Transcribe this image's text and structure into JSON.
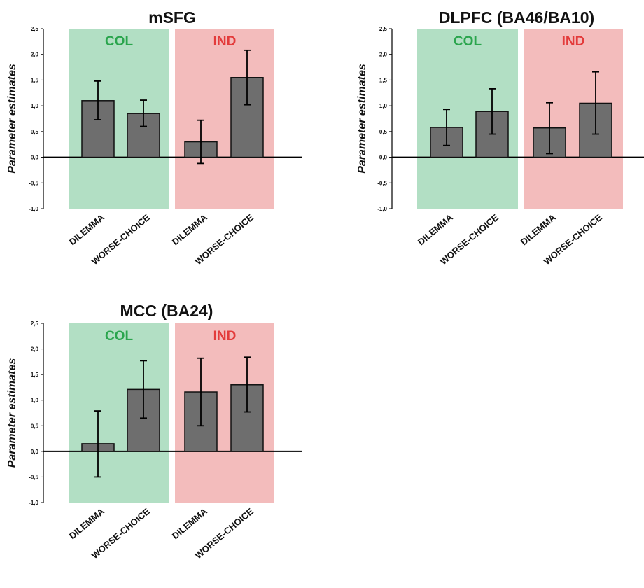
{
  "colors": {
    "col_band": "#b2dfc4",
    "ind_band": "#f3bcbc",
    "col_text": "#2aa54d",
    "ind_text": "#e33b3b",
    "bar_fill": "#6e6e6e",
    "bar_stroke": "#111111",
    "axis": "#000000"
  },
  "chart_data": [
    {
      "type": "bar",
      "title": "mSFG",
      "ylabel": "Parameter estimates",
      "xlabel": "",
      "ylim": [
        -1.0,
        2.5
      ],
      "yticks": [
        "-1,0",
        "-0,5",
        "0,0",
        "0,5",
        "1,0",
        "1,5",
        "2,0",
        "2,5"
      ],
      "ytick_values": [
        -1.0,
        -0.5,
        0.0,
        0.5,
        1.0,
        1.5,
        2.0,
        2.5
      ],
      "categories": [
        "DILEMMA",
        "WORSE-CHOICE",
        "DILEMMA",
        "WORSE-CHOICE"
      ],
      "groups": [
        {
          "label": "COL",
          "categories": [
            0,
            1
          ]
        },
        {
          "label": "IND",
          "categories": [
            2,
            3
          ]
        }
      ],
      "values": [
        1.1,
        0.85,
        0.3,
        1.55
      ],
      "error_low": [
        0.73,
        0.6,
        -0.12,
        1.02
      ],
      "error_high": [
        1.48,
        1.11,
        0.72,
        2.08
      ],
      "grid": false,
      "legend": "none"
    },
    {
      "type": "bar",
      "title": "DLPFC (BA46/BA10)",
      "ylabel": "Parameter estimates",
      "xlabel": "",
      "ylim": [
        -1.0,
        2.5
      ],
      "yticks": [
        "-1,0",
        "-0,5",
        "0,0",
        "0,5",
        "1,0",
        "1,5",
        "2,0",
        "2,5"
      ],
      "ytick_values": [
        -1.0,
        -0.5,
        0.0,
        0.5,
        1.0,
        1.5,
        2.0,
        2.5
      ],
      "categories": [
        "DILEMMA",
        "WORSE-CHOICE",
        "DILEMMA",
        "WORSE-CHOICE"
      ],
      "groups": [
        {
          "label": "COL",
          "categories": [
            0,
            1
          ]
        },
        {
          "label": "IND",
          "categories": [
            2,
            3
          ]
        }
      ],
      "values": [
        0.58,
        0.89,
        0.57,
        1.05
      ],
      "error_low": [
        0.23,
        0.45,
        0.07,
        0.45
      ],
      "error_high": [
        0.93,
        1.33,
        1.06,
        1.66
      ],
      "grid": false,
      "legend": "none"
    },
    {
      "type": "bar",
      "title": "MCC (BA24)",
      "ylabel": "Parameter estimates",
      "xlabel": "",
      "ylim": [
        -1.0,
        2.5
      ],
      "yticks": [
        "-1,0",
        "-0,5",
        "0,0",
        "0,5",
        "1,0",
        "1,5",
        "2,0",
        "2,5"
      ],
      "ytick_values": [
        -1.0,
        -0.5,
        0.0,
        0.5,
        1.0,
        1.5,
        2.0,
        2.5
      ],
      "categories": [
        "DILEMMA",
        "WORSE-CHOICE",
        "DILEMMA",
        "WORSE-CHOICE"
      ],
      "groups": [
        {
          "label": "COL",
          "categories": [
            0,
            1
          ]
        },
        {
          "label": "IND",
          "categories": [
            2,
            3
          ]
        }
      ],
      "values": [
        0.15,
        1.21,
        1.16,
        1.3
      ],
      "error_low": [
        -0.5,
        0.65,
        0.5,
        0.77
      ],
      "error_high": [
        0.79,
        1.77,
        1.82,
        1.84
      ],
      "grid": false,
      "legend": "none"
    }
  ]
}
